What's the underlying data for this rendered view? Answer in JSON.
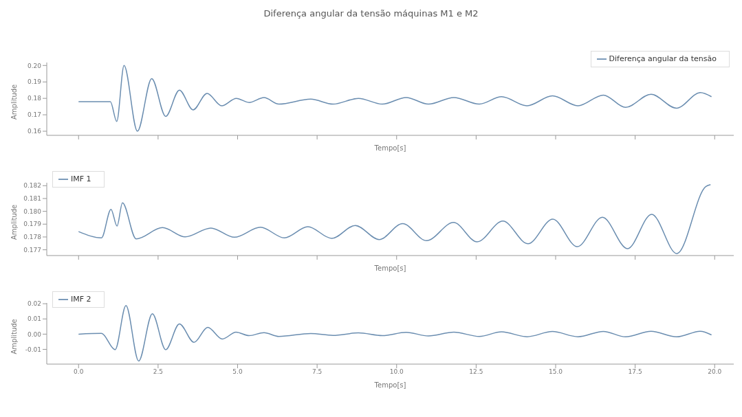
{
  "chart_data": [
    {
      "type": "line",
      "title": "Diferença angular da tensão máquinas M1 e M2",
      "xlabel": "Tempo[s]",
      "ylabel": "Amplitude",
      "legend": "top right",
      "tick_labels": "y",
      "xlim": [
        -1,
        20.6
      ],
      "xticks": [
        0,
        2.5,
        5,
        7.5,
        10,
        12.5,
        15,
        17.5,
        20
      ],
      "ylim": [
        0.1575,
        0.2018
      ],
      "yticks": [
        0.16,
        0.17,
        0.18,
        0.19,
        {
          "value": 0.2,
          "label": "0.20"
        }
      ],
      "x": [
        0,
        1.0,
        1.2,
        1.43,
        1.85,
        2.3,
        2.74,
        3.17,
        3.6,
        4.04,
        4.5,
        4.96,
        5.36,
        5.83,
        6.3,
        7.3,
        8.0,
        8.8,
        9.55,
        10.3,
        11.0,
        11.8,
        12.6,
        13.3,
        14.1,
        14.9,
        15.7,
        16.5,
        17.2,
        18.0,
        18.8,
        19.55,
        19.9
      ],
      "series": [
        {
          "name": "Diferença angular da tensão",
          "color": "#6a8db0",
          "values": [
            0.178,
            0.178,
            0.166,
            0.2,
            0.16,
            0.192,
            0.169,
            0.185,
            0.173,
            0.183,
            0.1755,
            0.18,
            0.1775,
            0.1805,
            0.1765,
            0.1795,
            0.1765,
            0.18,
            0.1765,
            0.1805,
            0.1765,
            0.1805,
            0.1765,
            0.181,
            0.1755,
            0.1815,
            0.1755,
            0.182,
            0.1745,
            0.1825,
            0.174,
            0.1835,
            0.181
          ]
        }
      ]
    },
    {
      "type": "line",
      "xlabel": "Tempo[s]",
      "ylabel": "Amplitude",
      "legend": "top left",
      "tick_labels": "y",
      "xlim": [
        -1,
        20.6
      ],
      "xticks": [
        0,
        2.5,
        5,
        7.5,
        10,
        12.5,
        15,
        17.5,
        20
      ],
      "ylim": [
        0.17655,
        0.18223
      ],
      "yticks": [
        0.177,
        0.178,
        0.179,
        {
          "value": 0.18,
          "label": "0.180"
        },
        0.181,
        0.182
      ],
      "x": [
        0,
        0.72,
        1.02,
        1.21,
        1.38,
        1.81,
        2.64,
        3.35,
        4.16,
        4.9,
        5.72,
        6.47,
        7.21,
        7.96,
        8.7,
        9.45,
        10.19,
        10.94,
        11.79,
        12.53,
        13.34,
        14.13,
        14.91,
        15.68,
        16.47,
        17.26,
        18.02,
        18.81,
        19.72,
        19.87
      ],
      "series": [
        {
          "name": "IMF 1",
          "color": "#6a8db0",
          "values": [
            0.17842,
            0.17793,
            0.18016,
            0.17885,
            0.18066,
            0.17785,
            0.17873,
            0.17801,
            0.1787,
            0.17798,
            0.17876,
            0.17793,
            0.1788,
            0.17789,
            0.1789,
            0.1778,
            0.17904,
            0.17771,
            0.17913,
            0.17762,
            0.17924,
            0.17747,
            0.17939,
            0.17724,
            0.17954,
            0.17709,
            0.17977,
            0.1767,
            0.18193,
            0.18208
          ]
        }
      ]
    },
    {
      "type": "line",
      "xlabel": "Tempo[s]",
      "ylabel": "Amplitude",
      "legend": "top left",
      "xlim": [
        -1,
        20.6
      ],
      "xticks": [
        {
          "value": 0,
          "label": "0.0"
        },
        {
          "value": 2.5,
          "label": "2.5"
        },
        {
          "value": 5,
          "label": "5.0"
        },
        {
          "value": 7.5,
          "label": "7.5"
        },
        {
          "value": 10,
          "label": "10.0"
        },
        {
          "value": 12.5,
          "label": "12.5"
        },
        {
          "value": 15,
          "label": "15.0"
        },
        {
          "value": 17.5,
          "label": "17.5"
        },
        {
          "value": 20,
          "label": "20.0"
        }
      ],
      "ylim": [
        -0.0197,
        0.0205
      ],
      "yticks": [
        {
          "value": -0.01,
          "label": "-0.01"
        },
        {
          "value": 0,
          "label": "0.00"
        },
        {
          "value": 0.01,
          "label": "0.01"
        },
        {
          "value": 0.02,
          "label": "0.02"
        }
      ],
      "x": [
        0,
        0.72,
        1.15,
        1.49,
        1.89,
        2.32,
        2.74,
        3.17,
        3.63,
        4.06,
        4.52,
        4.95,
        5.36,
        5.83,
        6.3,
        7.3,
        8.0,
        8.8,
        9.55,
        10.3,
        11.0,
        11.8,
        12.6,
        13.3,
        14.1,
        14.9,
        15.7,
        16.5,
        17.2,
        18.0,
        18.8,
        19.55,
        19.9
      ],
      "series": [
        {
          "name": "IMF 2",
          "color": "#6a8db0",
          "values": [
            0,
            0.0005,
            -0.0102,
            0.0188,
            -0.0177,
            0.0134,
            -0.0102,
            0.0067,
            -0.0054,
            0.0045,
            -0.0032,
            0.0013,
            -0.001,
            0.001,
            -0.0015,
            0.0004,
            -0.0008,
            0.0008,
            -0.001,
            0.0012,
            -0.0012,
            0.0013,
            -0.0015,
            0.0015,
            -0.0017,
            0.0017,
            -0.0017,
            0.0018,
            -0.0018,
            0.0019,
            -0.0018,
            0.0019,
            -0.0005
          ]
        }
      ]
    }
  ]
}
